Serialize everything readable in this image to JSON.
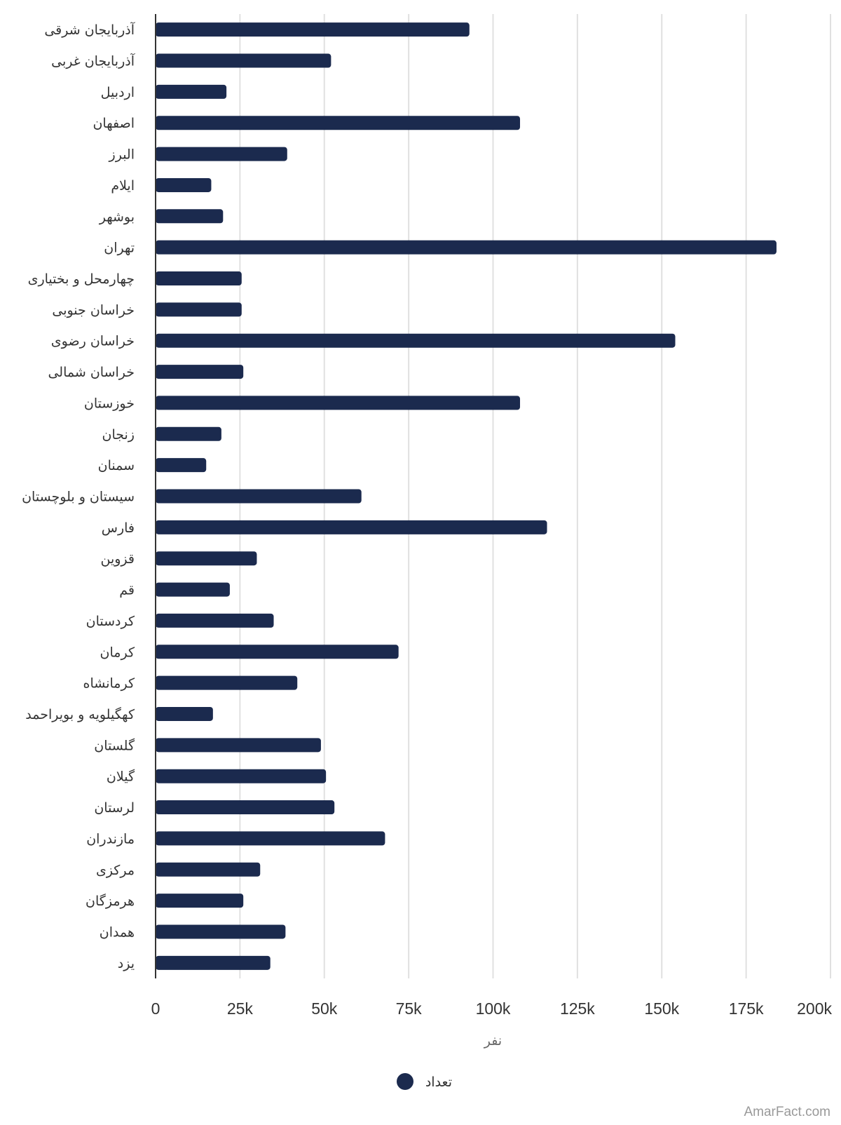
{
  "chart_data": {
    "type": "bar",
    "orientation": "horizontal",
    "categories": [
      "آذربایجان شرقی",
      "آذربایجان غربی",
      "اردبیل",
      "اصفهان",
      "البرز",
      "ایلام",
      "بوشهر",
      "تهران",
      "چهارمحل و بختیاری",
      "خراسان جنوبی",
      "خراسان رضوی",
      "خراسان شمالی",
      "خوزستان",
      "زنجان",
      "سمنان",
      "سیستان و بلوچستان",
      "فارس",
      "قزوین",
      "قم",
      "کردستان",
      "کرمان",
      "کرمانشاه",
      "کهگیلویه و بویراحمد",
      "گلستان",
      "گیلان",
      "لرستان",
      "مازندران",
      "مرکزی",
      "هرمزگان",
      "همدان",
      "یزد"
    ],
    "series": [
      {
        "name": "تعداد",
        "color": "#1b2a4e",
        "values": [
          93000,
          52000,
          21000,
          108000,
          39000,
          16500,
          20000,
          184000,
          25500,
          25500,
          154000,
          26000,
          108000,
          19500,
          15000,
          61000,
          116000,
          30000,
          22000,
          35000,
          72000,
          42000,
          17000,
          49000,
          50500,
          53000,
          68000,
          31000,
          26000,
          38500,
          34000
        ]
      }
    ],
    "xlabel": "نفر",
    "ylabel": "",
    "xlim": [
      0,
      200000
    ],
    "x_ticks": [
      "0",
      "25k",
      "50k",
      "75k",
      "100k",
      "125k",
      "150k",
      "175k",
      "200k"
    ],
    "grid": "vertical",
    "legend_position": "bottom-center"
  },
  "watermark": "AmarFact.com"
}
